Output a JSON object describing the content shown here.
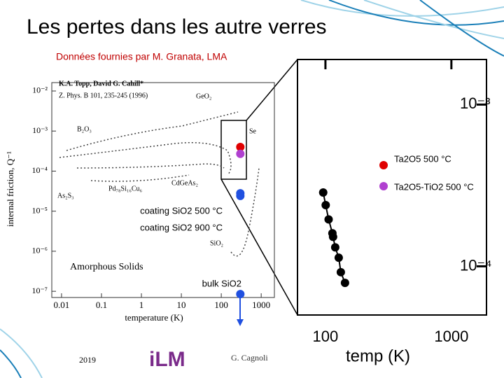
{
  "slide": {
    "title": "Les pertes dans les autre verres",
    "subtitle": "Données fournies par M. Granata, LMA",
    "year": "2019",
    "logo": "iLM",
    "author": "G. Cagnoli"
  },
  "chart_data": [
    {
      "type": "scatter",
      "log_x": true,
      "log_y": true,
      "x_label": "temperature (K)",
      "y_label": "internal friction, Q⁻¹",
      "annotations": [
        "K.A. Topp, David G. Cahill*",
        "Z. Phys. B 101, 235-245 (1996)",
        "GeO₂",
        "B₂O₃",
        "As₂S₃",
        "Pd₇₈Si₁₆Cu₆",
        "CdGeAs₂",
        "SiO₂",
        "Se",
        "Amorphous Solids"
      ],
      "xlim": [
        0.0057,
        2140
      ],
      "ylim": [
        7e-08,
        0.0162
      ],
      "xticks": [
        0.01,
        0.1,
        1,
        10,
        100,
        1000
      ],
      "yticks": [
        {
          "value": 0.01,
          "label": "10⁻²"
        },
        {
          "value": 0.001,
          "label": "10⁻³"
        },
        {
          "value": 0.0001,
          "label": "10⁻⁴"
        },
        {
          "value": 1e-05,
          "label": "10⁻⁵"
        },
        {
          "value": 1e-06,
          "label": "10⁻⁶"
        },
        {
          "value": 1e-07,
          "label": "10⁻⁷"
        }
      ],
      "series": [
        {
          "name": "Ta2O5 500 °C",
          "color": "#e00000",
          "x": [
            300
          ],
          "values": [
            0.0004
          ]
        },
        {
          "name": "Ta2O5-TiO2 500 °C",
          "color": "#b040d0",
          "x": [
            300
          ],
          "values": [
            0.00027
          ]
        },
        {
          "name": "coating SiO2 500 °C",
          "color": "#2050e0",
          "x": [
            300
          ],
          "values": [
            2.8e-05
          ]
        },
        {
          "name": "coating SiO2 900 °C",
          "color": "#2050e0",
          "x": [
            300
          ],
          "values": [
            2.4e-05
          ]
        },
        {
          "name": "bulk SiO2",
          "color": "#2050e0",
          "x": [
            300
          ],
          "values": [
            8.5e-08
          ]
        }
      ]
    },
    {
      "type": "scatter",
      "log_x": true,
      "log_y": true,
      "x_label": "temp (K)",
      "xlim": [
        60,
        1900
      ],
      "ylim": [
        5e-05,
        0.0019
      ],
      "xticks": [
        100,
        1000
      ],
      "yticks": [
        {
          "value": 0.001,
          "label": "10⁻³"
        },
        {
          "value": 0.0001,
          "label": "10⁻⁴"
        }
      ],
      "series": [
        {
          "color": "#000000",
          "x": [
            96,
            100.5,
            106,
            113.6,
            115,
            119.6,
            127.5,
            132.5,
            143
          ],
          "values": [
            0.000286,
            0.000239,
            0.000195,
            0.00016,
            0.000152,
            0.000131,
            0.000113,
            9.2e-05,
            7.9e-05
          ]
        }
      ]
    }
  ]
}
